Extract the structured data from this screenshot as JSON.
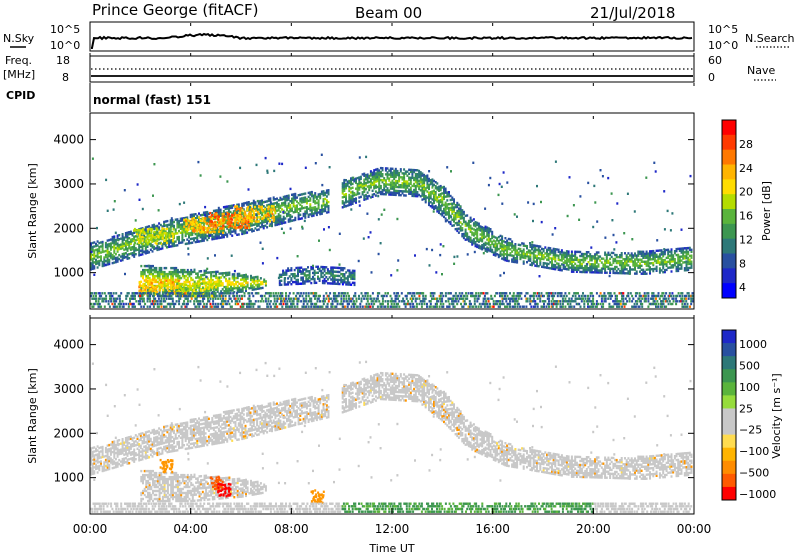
{
  "header": {
    "station": "Prince George (fitACF)",
    "beam": "Beam 00",
    "date": "21/Jul/2018"
  },
  "noise_panel": {
    "left_label": "N.Sky",
    "right_label": "N.Search",
    "left_ticks": [
      "10^5",
      "10^0"
    ],
    "right_ticks": [
      "10^5",
      "10^0"
    ]
  },
  "freq_panel": {
    "left_label_1": "Freq.",
    "left_label_2": "[MHz]",
    "right_label": "Nave",
    "left_ticks": [
      "18",
      "8"
    ],
    "right_ticks": [
      "60",
      "0"
    ]
  },
  "cpid_panel": {
    "label": "CPID",
    "mode_text": "normal (fast) 151"
  },
  "power_panel": {
    "ylabel": "Slant Range [km]",
    "y_ticks": [
      "4000",
      "3000",
      "2000",
      "1000"
    ],
    "colorbar_label": "Power [dB]",
    "colorbar_ticks": [
      "28",
      "24",
      "20",
      "16",
      "12",
      "8",
      "4"
    ],
    "colorbar_colors": [
      "#ff0000",
      "#ff3a00",
      "#ff7800",
      "#ffb400",
      "#ffdc00",
      "#b4dc00",
      "#5ab43c",
      "#3c9650",
      "#2d7878",
      "#2850a0",
      "#1e28c8",
      "#0000ff"
    ]
  },
  "velocity_panel": {
    "ylabel": "Slant Range [km]",
    "y_ticks": [
      "4000",
      "3000",
      "2000",
      "1000"
    ],
    "colorbar_label": "Velocity [m s⁻¹]",
    "colorbar_ticks": [
      "1000",
      "500",
      "100",
      "25",
      "−25",
      "−100",
      "−500",
      "−1000"
    ],
    "colorbar_colors": [
      "#1e28c8",
      "#2850a0",
      "#2d7878",
      "#3c9650",
      "#5ab43c",
      "#96dc3c",
      "#c8c8c8",
      "#c8c8c8",
      "#ffdc50",
      "#ffb400",
      "#ff8c00",
      "#ff5a00",
      "#ff0000"
    ]
  },
  "time_axis": {
    "xlabel": "Time UT",
    "ticks": [
      "00:00",
      "04:00",
      "08:00",
      "12:00",
      "16:00",
      "20:00",
      "00:00"
    ]
  },
  "chart_data": {
    "type": "heatmap",
    "x_range_hours": [
      0,
      24
    ],
    "y_range_km": [
      180,
      4600
    ],
    "power_bands": [
      {
        "t": [
          0.0,
          3.0,
          6.0,
          8.0,
          9.5
        ],
        "lo": [
          1100,
          1600,
          1900,
          2200,
          2400
        ],
        "hi": [
          1700,
          2200,
          2600,
          2800,
          2900
        ],
        "level": 12
      },
      {
        "t": [
          10.0,
          11.5,
          13.0,
          14.0,
          15.0,
          16.5,
          19.0,
          22.0,
          24.0
        ],
        "lo": [
          2500,
          2800,
          2750,
          2300,
          1700,
          1300,
          1050,
          1000,
          1100
        ],
        "hi": [
          3100,
          3400,
          3350,
          3000,
          2300,
          1800,
          1500,
          1500,
          1600
        ],
        "level": 12
      },
      {
        "t": [
          2.0,
          4.0,
          6.0,
          7.0
        ],
        "lo": [
          500,
          500,
          600,
          700
        ],
        "hi": [
          1200,
          1100,
          1000,
          900
        ],
        "level": 16
      },
      {
        "t": [
          7.5,
          9.0,
          10.5
        ],
        "lo": [
          750,
          800,
          750
        ],
        "hi": [
          1100,
          1200,
          1100
        ],
        "level": 8
      }
    ],
    "power_hotspots": [
      {
        "t": 2.5,
        "r": 1850,
        "level": 20
      },
      {
        "t": 4.5,
        "r": 2100,
        "level": 24
      },
      {
        "t": 5.5,
        "r": 2200,
        "level": 28
      },
      {
        "t": 6.5,
        "r": 2350,
        "level": 24
      },
      {
        "t": 2.7,
        "r": 700,
        "level": 24
      },
      {
        "t": 4.2,
        "r": 650,
        "level": 20
      }
    ],
    "power_ground_scatter": {
      "t_range": [
        0,
        24
      ],
      "r_range": [
        200,
        600
      ],
      "level": 4
    },
    "velocity_bands": [
      {
        "t": [
          0.0,
          3.0,
          6.0,
          8.0,
          9.5
        ],
        "lo": [
          1100,
          1600,
          1900,
          2200,
          2400
        ],
        "hi": [
          1700,
          2200,
          2600,
          2800,
          2900
        ],
        "v": 0
      },
      {
        "t": [
          10.0,
          11.5,
          13.0,
          14.0,
          15.0,
          16.5,
          19.0,
          22.0,
          24.0
        ],
        "lo": [
          2500,
          2800,
          2750,
          2300,
          1700,
          1300,
          1050,
          1000,
          1100
        ],
        "hi": [
          3100,
          3400,
          3350,
          3000,
          2300,
          1800,
          1500,
          1500,
          1600
        ],
        "v": 0
      },
      {
        "t": [
          2.0,
          4.0,
          6.0,
          7.0
        ],
        "lo": [
          500,
          500,
          600,
          700
        ],
        "hi": [
          1200,
          1100,
          1000,
          900
        ],
        "v": 0
      }
    ],
    "velocity_hotspots": [
      {
        "t": 5.0,
        "r": 900,
        "v": -500
      },
      {
        "t": 5.3,
        "r": 750,
        "v": -1000
      },
      {
        "t": 3.0,
        "r": 1300,
        "v": -100
      },
      {
        "t": 9.0,
        "r": 600,
        "v": -100
      }
    ],
    "velocity_ground_scatter": {
      "t_range": [
        0,
        24
      ],
      "r_range": [
        200,
        450
      ],
      "v": 100
    }
  }
}
